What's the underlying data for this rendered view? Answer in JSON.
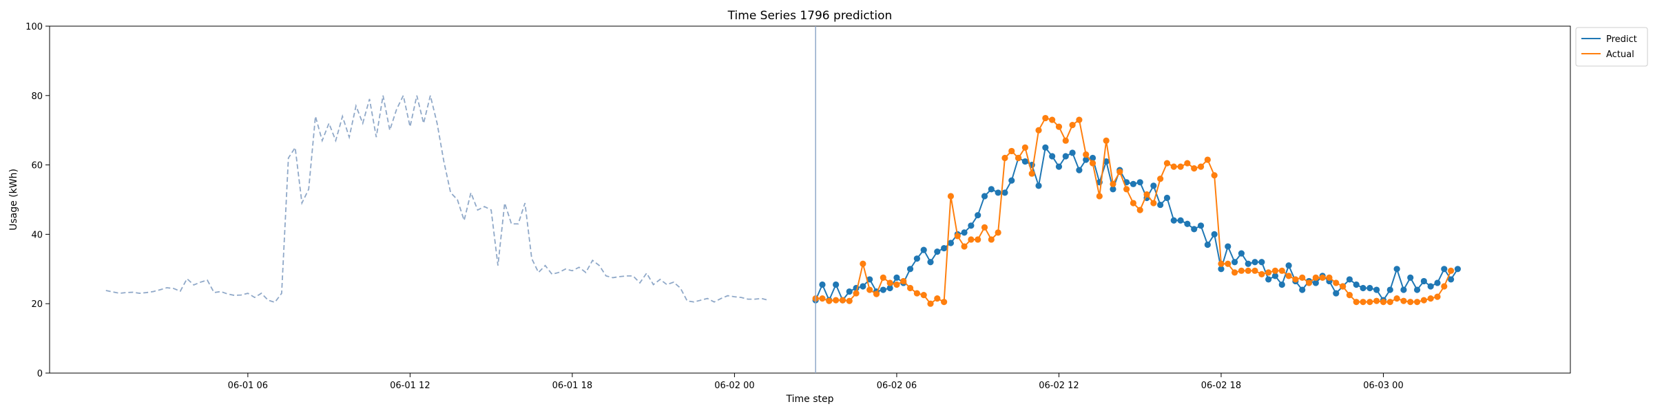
{
  "chart_data": {
    "type": "line",
    "title": "Time Series 1796 prediction",
    "xlabel": "Time step",
    "ylabel": "Usage (kWh)",
    "ylim": [
      0,
      100
    ],
    "yticks": [
      0,
      20,
      40,
      60,
      80,
      100
    ],
    "xlim": [
      "2024-05-31 22:40",
      "2024-06-03 06:55"
    ],
    "xticks": [
      {
        "t": "2024-06-01 06:00",
        "label": "06-01 06"
      },
      {
        "t": "2024-06-01 12:00",
        "label": "06-01 12"
      },
      {
        "t": "2024-06-01 18:00",
        "label": "06-01 18"
      },
      {
        "t": "2024-06-02 00:00",
        "label": "06-02 00"
      },
      {
        "t": "2024-06-02 06:00",
        "label": "06-02 06"
      },
      {
        "t": "2024-06-02 12:00",
        "label": "06-02 12"
      },
      {
        "t": "2024-06-02 18:00",
        "label": "06-02 18"
      },
      {
        "t": "2024-06-03 00:00",
        "label": "06-03 00"
      }
    ],
    "step_minutes": 15,
    "vline": "2024-06-02 03:00",
    "legend_position": "top-right",
    "series": [
      {
        "role": "history",
        "color": "#8fa8c8",
        "style": "dashed",
        "start": "2024-06-01 00:45",
        "values": [
          23.8,
          23.4,
          23.0,
          23.2,
          23.3,
          23.0,
          23.2,
          23.5,
          24.0,
          24.6,
          24.4,
          23.6,
          27.2,
          25.4,
          26.2,
          26.8,
          23.2,
          23.5,
          22.8,
          22.4,
          22.5,
          23.0,
          21.8,
          23.0,
          21.0,
          20.4,
          23.0,
          62.0,
          65.0,
          49.0,
          53.0,
          74.0,
          67.0,
          72.0,
          67.0,
          74.0,
          68.0,
          77.0,
          72.0,
          79.0,
          68.0,
          80.0,
          70.0,
          76.0,
          80.0,
          71.0,
          80.0,
          72.0,
          80.0,
          72.0,
          61.0,
          52.0,
          50.0,
          44.0,
          52.0,
          47.0,
          48.0,
          47.0,
          31.0,
          49.0,
          43.0,
          43.0,
          49.0,
          33.0,
          29.0,
          31.0,
          28.5,
          29.0,
          30.0,
          29.5,
          30.5,
          29.0,
          32.5,
          31.0,
          28.0,
          27.5,
          27.8,
          28.0,
          28.0,
          26.0,
          28.8,
          25.5,
          27.0,
          25.5,
          26.2,
          24.5,
          20.8,
          20.5,
          21.0,
          21.5,
          20.5,
          21.5,
          22.3,
          22.0,
          21.8,
          21.3,
          21.3,
          21.5,
          21.0
        ]
      },
      {
        "name": "Predict",
        "color": "#1f77b4",
        "style": "solid-markers",
        "start": "2024-06-02 03:00",
        "values": [
          21.0,
          25.5,
          21.0,
          25.5,
          21.0,
          23.5,
          24.5,
          25.0,
          27.0,
          23.5,
          24.0,
          24.5,
          27.5,
          26.0,
          30.0,
          33.0,
          35.5,
          32.0,
          35.0,
          36.0,
          37.5,
          40.0,
          40.5,
          42.5,
          45.5,
          51.0,
          53.0,
          52.0,
          52.0,
          55.5,
          62.0,
          61.0,
          60.0,
          54.0,
          65.0,
          62.5,
          59.5,
          62.5,
          63.5,
          58.5,
          61.5,
          62.0,
          55.0,
          61.0,
          53.0,
          58.5,
          55.0,
          54.5,
          55.0,
          50.5,
          54.0,
          48.5,
          50.5,
          44.0,
          44.0,
          43.0,
          41.5,
          42.5,
          37.0,
          40.0,
          30.0,
          36.5,
          32.0,
          34.5,
          31.5,
          32.0,
          32.0,
          27.0,
          28.0,
          25.5,
          31.0,
          26.5,
          24.0,
          26.5,
          26.0,
          28.0,
          26.5,
          23.0,
          25.0,
          27.0,
          25.5,
          24.5,
          24.5,
          24.0,
          21.0,
          24.0,
          30.0,
          24.0,
          27.5,
          24.0,
          26.5,
          25.0,
          26.0,
          30.0,
          27.0,
          30.0
        ]
      },
      {
        "name": "Actual",
        "color": "#ff7f0e",
        "style": "solid-markers",
        "start": "2024-06-02 03:00",
        "values": [
          21.5,
          21.5,
          20.8,
          21.0,
          21.0,
          20.8,
          23.0,
          31.5,
          24.0,
          22.8,
          27.5,
          26.0,
          25.5,
          26.5,
          24.5,
          23.0,
          22.5,
          20.0,
          21.5,
          20.5,
          51.0,
          39.5,
          36.5,
          38.5,
          38.5,
          42.0,
          38.5,
          40.5,
          62.0,
          64.0,
          62.0,
          65.0,
          57.5,
          70.0,
          73.5,
          73.0,
          71.0,
          67.0,
          71.5,
          73.0,
          63.0,
          60.5,
          51.0,
          67.0,
          54.5,
          58.0,
          53.0,
          49.0,
          47.0,
          51.5,
          49.0,
          56.0,
          60.5,
          59.5,
          59.5,
          60.5,
          59.0,
          59.5,
          61.5,
          57.0,
          31.5,
          31.5,
          29.0,
          29.5,
          29.5,
          29.5,
          28.5,
          29.0,
          29.5,
          29.5,
          28.0,
          27.0,
          27.5,
          26.0,
          27.5,
          27.5,
          27.5,
          26.0,
          25.0,
          22.5,
          20.5,
          20.5,
          20.5,
          20.8,
          20.5,
          20.5,
          21.5,
          20.8,
          20.5,
          20.5,
          21.0,
          21.5,
          22.0,
          25.0,
          29.5
        ]
      }
    ]
  }
}
